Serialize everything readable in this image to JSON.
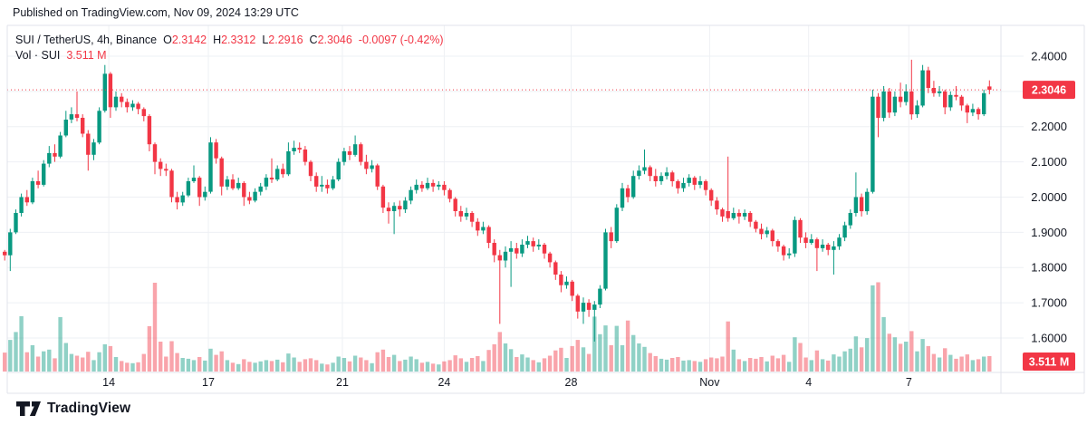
{
  "published_line": "Published on TradingView.com, Nov 09, 2024 13:29 UTC",
  "legend": {
    "symbol": "SUI / TetherUS, 4h, Binance",
    "open_label": "O",
    "open": "2.3142",
    "high_label": "H",
    "high": "2.3312",
    "low_label": "L",
    "low": "2.2916",
    "close_label": "C",
    "close": "2.3046",
    "change": "-0.0097 (-0.42%)",
    "vol_label": "Vol · SUI",
    "vol_value": "3.511 M"
  },
  "footer": {
    "brand": "TradingView"
  },
  "colors": {
    "up": "#089981",
    "down": "#f23645",
    "vol_up": "rgba(8,153,129,0.45)",
    "vol_down": "rgba(242,54,69,0.45)",
    "grid": "#eef0f4",
    "border": "#e0e3eb",
    "axis_text": "#131722",
    "badge": "#f23645",
    "badge_text": "#ffffff",
    "last_price_line": "#f23645"
  },
  "chart_data": {
    "type": "candlestick+volume",
    "symbol": "SUI/TetherUS",
    "interval": "4h",
    "exchange": "Binance",
    "legend_note": "grid on, last-price dotted line, volume underlay",
    "y_axis": {
      "min": 1.55,
      "max": 2.42
    },
    "grid_levels": [
      2.4,
      2.3,
      2.2,
      2.1,
      2.0,
      1.9,
      1.8,
      1.7,
      1.6
    ],
    "price_ticks": [
      {
        "label": "2.4000",
        "value": 2.4
      },
      {
        "label": "2.2000",
        "value": 2.2
      },
      {
        "label": "2.1000",
        "value": 2.1
      },
      {
        "label": "2.0000",
        "value": 2.0
      },
      {
        "label": "1.9000",
        "value": 1.9
      },
      {
        "label": "1.8000",
        "value": 1.8
      },
      {
        "label": "1.7000",
        "value": 1.7
      },
      {
        "label": "1.6000",
        "value": 1.6
      }
    ],
    "x_ticks": [
      {
        "label": "14",
        "index": 18.7
      },
      {
        "label": "17",
        "index": 36.6
      },
      {
        "label": "21",
        "index": 60.7
      },
      {
        "label": "24",
        "index": 79.0
      },
      {
        "label": "28",
        "index": 101.8
      },
      {
        "label": "Nov",
        "index": 126.7
      },
      {
        "label": "4",
        "index": 144.5
      },
      {
        "label": "7",
        "index": 162.5
      }
    ],
    "last_price": 2.3046,
    "last_price_label": "2.3046",
    "volume_badge_label": "3.511 M",
    "volume_unit": "M SUI",
    "candles_format": [
      "open",
      "high",
      "low",
      "close",
      "volume_millions"
    ],
    "candles": [
      [
        1.845,
        1.85,
        1.82,
        1.835,
        4.3
      ],
      [
        1.835,
        1.91,
        1.79,
        1.9,
        7.2
      ],
      [
        1.9,
        1.965,
        1.895,
        1.955,
        9.0
      ],
      [
        1.955,
        2.01,
        1.945,
        2.0,
        12.6
      ],
      [
        2.0,
        2.02,
        1.975,
        1.985,
        4.4
      ],
      [
        1.985,
        2.055,
        1.98,
        2.045,
        6.0
      ],
      [
        2.045,
        2.075,
        2.025,
        2.035,
        3.4
      ],
      [
        2.035,
        2.105,
        2.03,
        2.095,
        4.6
      ],
      [
        2.095,
        2.145,
        2.085,
        2.125,
        5.0
      ],
      [
        2.125,
        2.15,
        2.1,
        2.115,
        3.0
      ],
      [
        2.115,
        2.185,
        2.11,
        2.175,
        12.4
      ],
      [
        2.175,
        2.245,
        2.17,
        2.22,
        6.5
      ],
      [
        2.22,
        2.255,
        2.21,
        2.235,
        4.0
      ],
      [
        2.235,
        2.3,
        2.215,
        2.225,
        3.6
      ],
      [
        2.225,
        2.235,
        2.17,
        2.18,
        3.2
      ],
      [
        2.18,
        2.19,
        2.075,
        2.12,
        4.5
      ],
      [
        2.12,
        2.165,
        2.105,
        2.155,
        2.6
      ],
      [
        2.155,
        2.255,
        2.15,
        2.245,
        4.4
      ],
      [
        2.245,
        2.375,
        2.24,
        2.35,
        6.2
      ],
      [
        2.35,
        2.355,
        2.225,
        2.255,
        5.8
      ],
      [
        2.255,
        2.3,
        2.245,
        2.285,
        3.3
      ],
      [
        2.285,
        2.295,
        2.255,
        2.27,
        2.4
      ],
      [
        2.27,
        2.28,
        2.24,
        2.255,
        2.0
      ],
      [
        2.255,
        2.275,
        2.245,
        2.265,
        1.9
      ],
      [
        2.265,
        2.27,
        2.235,
        2.25,
        2.1
      ],
      [
        2.25,
        2.255,
        2.215,
        2.23,
        4.0
      ],
      [
        2.23,
        2.235,
        2.13,
        2.15,
        10.3
      ],
      [
        2.15,
        2.155,
        2.065,
        2.1,
        20.2
      ],
      [
        2.1,
        2.11,
        2.06,
        2.08,
        6.8
      ],
      [
        2.08,
        2.095,
        2.06,
        2.075,
        3.4
      ],
      [
        2.075,
        2.08,
        1.985,
        2.0,
        6.9
      ],
      [
        2.0,
        2.015,
        1.965,
        1.985,
        4.2
      ],
      [
        1.985,
        2.015,
        1.975,
        2.005,
        3.1
      ],
      [
        2.005,
        2.055,
        2.0,
        2.045,
        2.9
      ],
      [
        2.045,
        2.09,
        2.04,
        2.055,
        2.6
      ],
      [
        2.055,
        2.06,
        1.975,
        2.0,
        3.3
      ],
      [
        2.0,
        2.03,
        1.99,
        2.015,
        2.5
      ],
      [
        2.015,
        2.17,
        2.01,
        2.155,
        5.2
      ],
      [
        2.155,
        2.165,
        2.095,
        2.11,
        3.8
      ],
      [
        2.11,
        2.115,
        2.005,
        2.03,
        4.6
      ],
      [
        2.03,
        2.06,
        2.02,
        2.05,
        2.6
      ],
      [
        2.05,
        2.065,
        2.02,
        2.025,
        2.0
      ],
      [
        2.025,
        2.055,
        2.02,
        2.04,
        1.7
      ],
      [
        2.04,
        2.045,
        1.975,
        2.0,
        2.8
      ],
      [
        2.0,
        2.015,
        1.98,
        1.99,
        2.2
      ],
      [
        1.99,
        2.025,
        1.985,
        2.015,
        2.0
      ],
      [
        2.015,
        2.04,
        2.005,
        2.03,
        2.3
      ],
      [
        2.03,
        2.065,
        2.02,
        2.055,
        2.6
      ],
      [
        2.055,
        2.11,
        2.04,
        2.05,
        2.4
      ],
      [
        2.05,
        2.09,
        2.045,
        2.08,
        2.7
      ],
      [
        2.08,
        2.095,
        2.055,
        2.065,
        2.1
      ],
      [
        2.065,
        2.155,
        2.06,
        2.13,
        4.1
      ],
      [
        2.13,
        2.16,
        2.12,
        2.14,
        3.2
      ],
      [
        2.14,
        2.155,
        2.125,
        2.135,
        2.2
      ],
      [
        2.135,
        2.145,
        2.09,
        2.1,
        2.8
      ],
      [
        2.1,
        2.105,
        2.045,
        2.06,
        3.0
      ],
      [
        2.06,
        2.07,
        2.015,
        2.03,
        2.6
      ],
      [
        2.03,
        2.06,
        2.015,
        2.035,
        1.8
      ],
      [
        2.035,
        2.05,
        2.01,
        2.025,
        1.6
      ],
      [
        2.025,
        2.06,
        2.02,
        2.05,
        2.0
      ],
      [
        2.05,
        2.11,
        2.045,
        2.1,
        3.4
      ],
      [
        2.1,
        2.14,
        2.09,
        2.13,
        3.1
      ],
      [
        2.13,
        2.145,
        2.105,
        2.12,
        2.3
      ],
      [
        2.12,
        2.175,
        2.115,
        2.15,
        3.6
      ],
      [
        2.15,
        2.155,
        2.09,
        2.1,
        3.2
      ],
      [
        2.1,
        2.12,
        2.065,
        2.08,
        2.6
      ],
      [
        2.08,
        2.105,
        2.07,
        2.09,
        1.9
      ],
      [
        2.09,
        2.095,
        2.02,
        2.03,
        4.4
      ],
      [
        2.03,
        2.035,
        1.955,
        1.97,
        5.0
      ],
      [
        1.97,
        1.985,
        1.925,
        1.96,
        3.3
      ],
      [
        1.96,
        1.985,
        1.895,
        1.975,
        3.8
      ],
      [
        1.975,
        1.99,
        1.945,
        1.965,
        2.4
      ],
      [
        1.965,
        2.0,
        1.955,
        1.99,
        2.7
      ],
      [
        1.99,
        2.03,
        1.98,
        2.02,
        3.4
      ],
      [
        2.02,
        2.05,
        2.01,
        2.035,
        2.8
      ],
      [
        2.035,
        2.045,
        2.015,
        2.025,
        2.0
      ],
      [
        2.025,
        2.055,
        2.02,
        2.04,
        2.2
      ],
      [
        2.04,
        2.05,
        2.015,
        2.03,
        1.8
      ],
      [
        2.03,
        2.045,
        2.02,
        2.035,
        1.6
      ],
      [
        2.035,
        2.045,
        2.005,
        2.02,
        2.3
      ],
      [
        2.02,
        2.025,
        1.985,
        1.995,
        2.6
      ],
      [
        1.995,
        2.0,
        1.945,
        1.96,
        3.7
      ],
      [
        1.96,
        1.975,
        1.93,
        1.945,
        3.0
      ],
      [
        1.945,
        1.97,
        1.935,
        1.955,
        2.2
      ],
      [
        1.955,
        1.96,
        1.915,
        1.93,
        3.1
      ],
      [
        1.93,
        1.94,
        1.89,
        1.905,
        3.5
      ],
      [
        1.905,
        1.93,
        1.895,
        1.915,
        2.4
      ],
      [
        1.915,
        1.92,
        1.855,
        1.87,
        4.9
      ],
      [
        1.87,
        1.88,
        1.815,
        1.835,
        6.2
      ],
      [
        1.835,
        1.85,
        1.64,
        1.82,
        9.0
      ],
      [
        1.82,
        1.86,
        1.8,
        1.845,
        6.4
      ],
      [
        1.845,
        1.875,
        1.745,
        1.855,
        5.1
      ],
      [
        1.855,
        1.87,
        1.825,
        1.84,
        3.3
      ],
      [
        1.84,
        1.88,
        1.83,
        1.865,
        3.9
      ],
      [
        1.865,
        1.89,
        1.855,
        1.875,
        3.2
      ],
      [
        1.875,
        1.885,
        1.845,
        1.86,
        2.6
      ],
      [
        1.86,
        1.88,
        1.85,
        1.865,
        2.1
      ],
      [
        1.865,
        1.87,
        1.825,
        1.84,
        3.0
      ],
      [
        1.84,
        1.845,
        1.8,
        1.815,
        3.6
      ],
      [
        1.815,
        1.82,
        1.765,
        1.78,
        4.8
      ],
      [
        1.78,
        1.79,
        1.73,
        1.75,
        5.4
      ],
      [
        1.75,
        1.775,
        1.74,
        1.76,
        3.1
      ],
      [
        1.76,
        1.765,
        1.705,
        1.72,
        5.8
      ],
      [
        1.72,
        1.725,
        1.655,
        1.675,
        7.2
      ],
      [
        1.675,
        1.715,
        1.64,
        1.7,
        5.5
      ],
      [
        1.7,
        1.71,
        1.66,
        1.68,
        4.0
      ],
      [
        1.68,
        1.705,
        1.59,
        1.695,
        12.5
      ],
      [
        1.695,
        1.75,
        1.685,
        1.74,
        8.5
      ],
      [
        1.74,
        1.91,
        1.735,
        1.9,
        10.5
      ],
      [
        1.9,
        1.915,
        1.855,
        1.875,
        6.0
      ],
      [
        1.875,
        1.98,
        1.87,
        1.97,
        10.4
      ],
      [
        1.97,
        2.04,
        1.96,
        2.025,
        6.0
      ],
      [
        2.025,
        2.035,
        1.985,
        2.0,
        11.6
      ],
      [
        2.0,
        2.075,
        1.995,
        2.06,
        8.3
      ],
      [
        2.06,
        2.09,
        2.05,
        2.075,
        6.4
      ],
      [
        2.075,
        2.135,
        2.065,
        2.085,
        5.6
      ],
      [
        2.085,
        2.09,
        2.045,
        2.06,
        4.2
      ],
      [
        2.06,
        2.08,
        2.03,
        2.045,
        3.5
      ],
      [
        2.045,
        2.07,
        2.035,
        2.06,
        2.9
      ],
      [
        2.06,
        2.085,
        2.05,
        2.07,
        2.7
      ],
      [
        2.07,
        2.075,
        2.03,
        2.045,
        3.1
      ],
      [
        2.045,
        2.05,
        2.01,
        2.025,
        3.3
      ],
      [
        2.025,
        2.055,
        2.015,
        2.04,
        2.5
      ],
      [
        2.04,
        2.065,
        2.03,
        2.055,
        2.6
      ],
      [
        2.055,
        2.06,
        2.02,
        2.035,
        2.4
      ],
      [
        2.035,
        2.06,
        2.025,
        2.045,
        2.2
      ],
      [
        2.045,
        2.05,
        2.005,
        2.02,
        2.8
      ],
      [
        2.02,
        2.025,
        1.975,
        1.99,
        3.2
      ],
      [
        1.99,
        2.0,
        1.95,
        1.965,
        3.0
      ],
      [
        1.965,
        1.97,
        1.93,
        1.945,
        3.4
      ],
      [
        1.96,
        2.115,
        1.93,
        1.94,
        11.4
      ],
      [
        1.94,
        1.97,
        1.935,
        1.955,
        5.0
      ],
      [
        1.955,
        1.965,
        1.925,
        1.945,
        2.8
      ],
      [
        1.945,
        1.965,
        1.935,
        1.955,
        2.4
      ],
      [
        1.955,
        1.96,
        1.915,
        1.93,
        3.1
      ],
      [
        1.93,
        1.935,
        1.9,
        1.91,
        2.9
      ],
      [
        1.91,
        1.925,
        1.88,
        1.895,
        3.3
      ],
      [
        1.895,
        1.915,
        1.885,
        1.905,
        2.3
      ],
      [
        1.905,
        1.91,
        1.86,
        1.875,
        3.6
      ],
      [
        1.875,
        1.88,
        1.845,
        1.86,
        3.0
      ],
      [
        1.86,
        1.865,
        1.82,
        1.835,
        3.8
      ],
      [
        1.835,
        1.855,
        1.825,
        1.84,
        2.2
      ],
      [
        1.84,
        1.945,
        1.83,
        1.935,
        7.8
      ],
      [
        1.935,
        1.94,
        1.87,
        1.885,
        6.5
      ],
      [
        1.885,
        1.9,
        1.855,
        1.87,
        3.2
      ],
      [
        1.87,
        1.895,
        1.865,
        1.88,
        2.6
      ],
      [
        1.88,
        1.885,
        1.79,
        1.855,
        4.8
      ],
      [
        1.855,
        1.88,
        1.845,
        1.865,
        2.8
      ],
      [
        1.865,
        1.87,
        1.835,
        1.85,
        2.5
      ],
      [
        1.85,
        1.875,
        1.78,
        1.86,
        3.9
      ],
      [
        1.86,
        1.895,
        1.85,
        1.885,
        3.4
      ],
      [
        1.885,
        1.93,
        1.875,
        1.92,
        4.6
      ],
      [
        1.92,
        1.965,
        1.91,
        1.955,
        5.2
      ],
      [
        1.955,
        2.07,
        1.945,
        2.0,
        8.0
      ],
      [
        2.0,
        2.01,
        1.945,
        1.96,
        5.5
      ],
      [
        1.96,
        2.025,
        1.95,
        2.015,
        7.6
      ],
      [
        2.015,
        2.305,
        2.01,
        2.285,
        19.6
      ],
      [
        2.285,
        2.295,
        2.17,
        2.225,
        20.3
      ],
      [
        2.225,
        2.315,
        2.215,
        2.3,
        12.4
      ],
      [
        2.3,
        2.31,
        2.225,
        2.24,
        8.6
      ],
      [
        2.24,
        2.3,
        2.23,
        2.285,
        7.8
      ],
      [
        2.285,
        2.325,
        2.255,
        2.27,
        6.3
      ],
      [
        2.27,
        2.32,
        2.26,
        2.3,
        6.8
      ],
      [
        2.3,
        2.39,
        2.22,
        2.235,
        9.2
      ],
      [
        2.235,
        2.275,
        2.225,
        2.26,
        4.6
      ],
      [
        2.26,
        2.375,
        2.255,
        2.36,
        7.4
      ],
      [
        2.36,
        2.37,
        2.295,
        2.31,
        5.8
      ],
      [
        2.31,
        2.33,
        2.285,
        2.295,
        4.0
      ],
      [
        2.295,
        2.315,
        2.285,
        2.3,
        3.2
      ],
      [
        2.3,
        2.305,
        2.235,
        2.255,
        5.3
      ],
      [
        2.255,
        2.3,
        2.245,
        2.29,
        3.8
      ],
      [
        2.29,
        2.315,
        2.275,
        2.285,
        2.9
      ],
      [
        2.285,
        2.29,
        2.245,
        2.26,
        3.4
      ],
      [
        2.26,
        2.265,
        2.21,
        2.24,
        3.9
      ],
      [
        2.24,
        2.265,
        2.23,
        2.25,
        2.6
      ],
      [
        2.25,
        2.255,
        2.22,
        2.235,
        2.8
      ],
      [
        2.235,
        2.305,
        2.23,
        2.295,
        3.4
      ],
      [
        2.3142,
        2.3312,
        2.2916,
        2.3046,
        3.511
      ]
    ]
  }
}
